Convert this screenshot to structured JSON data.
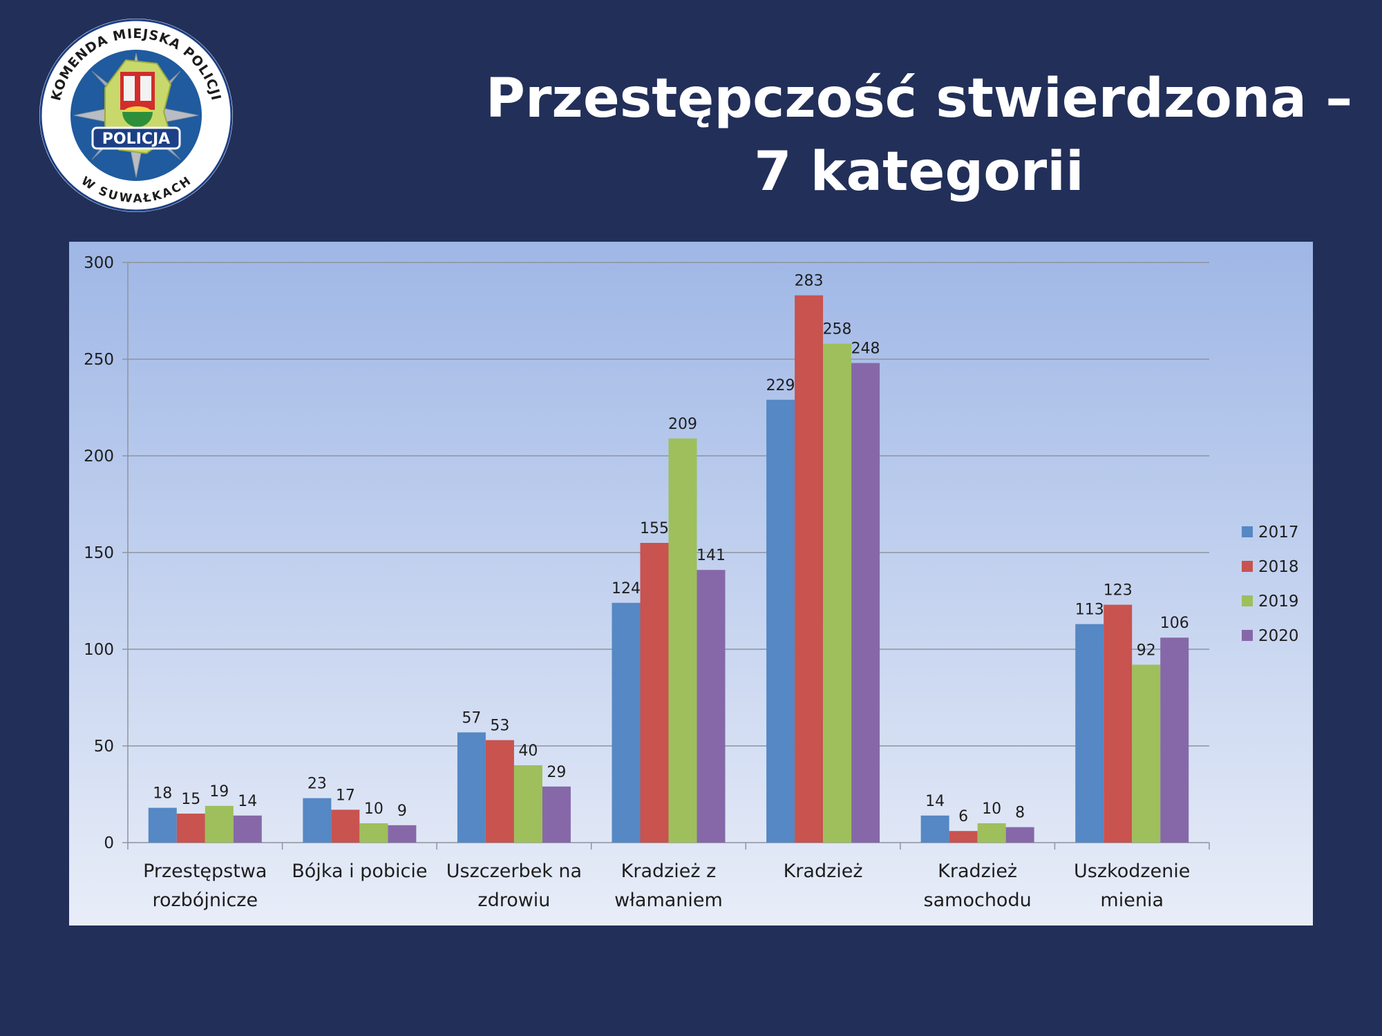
{
  "title": {
    "line1": "Przestępczość stwierdzona –",
    "line2": "7 kategorii"
  },
  "logo": {
    "ring_text_top": "KOMENDA MIEJSKA POLICJI",
    "ring_text_bottom": "W SUWAŁKACH",
    "badge_text": "POLICJA"
  },
  "colors": {
    "background": "#222f59",
    "panel_top": "#9fb7e6",
    "panel_bottom": "#e8edf8",
    "s2017": "#5588c4",
    "s2018": "#c8534f",
    "s2019": "#9ebf5c",
    "s2020": "#8668a8"
  },
  "chart_data": {
    "type": "bar",
    "title": "",
    "xlabel": "",
    "ylabel": "",
    "ylim": [
      0,
      300
    ],
    "yticks": [
      0,
      50,
      100,
      150,
      200,
      250,
      300
    ],
    "grid": true,
    "legend_position": "right",
    "categories": [
      [
        "Przestępstwa",
        "rozbójnicze"
      ],
      [
        "Bójka i pobicie"
      ],
      [
        "Uszczerbek na",
        "zdrowiu"
      ],
      [
        "Kradzież z",
        "włamaniem"
      ],
      [
        "Kradzież"
      ],
      [
        "Kradzież",
        "samochodu"
      ],
      [
        "Uszkodzenie",
        "mienia"
      ]
    ],
    "series": [
      {
        "name": "2017",
        "color": "#5588c4",
        "values": [
          18,
          23,
          57,
          124,
          229,
          14,
          113
        ]
      },
      {
        "name": "2018",
        "color": "#c8534f",
        "values": [
          15,
          17,
          53,
          155,
          283,
          6,
          123
        ]
      },
      {
        "name": "2019",
        "color": "#9ebf5c",
        "values": [
          19,
          10,
          40,
          209,
          258,
          10,
          92
        ]
      },
      {
        "name": "2020",
        "color": "#8668a8",
        "values": [
          14,
          9,
          29,
          141,
          248,
          8,
          106
        ]
      }
    ]
  }
}
